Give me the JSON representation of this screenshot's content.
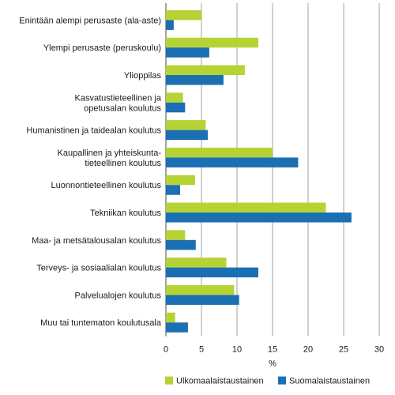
{
  "chart_data": {
    "type": "bar",
    "orientation": "horizontal",
    "categories": [
      [
        "Enintään alempi perusaste (ala-aste)"
      ],
      [
        "Ylempi perusaste (peruskoulu)"
      ],
      [
        "Ylioppilas"
      ],
      [
        "Kasvatustieteellinen ja",
        "opetusalan koulutus"
      ],
      [
        "Humanistinen ja taidealan koulutus"
      ],
      [
        "Kaupallinen ja yhteiskunta-",
        "tieteellinen koulutus"
      ],
      [
        "Luonnontieteellinen koulutus"
      ],
      [
        "Tekniikan koulutus"
      ],
      [
        "Maa- ja metsätalousalan koulutus"
      ],
      [
        "Terveys- ja sosiaalialan koulutus"
      ],
      [
        "Palvelualojen koulutus"
      ],
      [
        "Muu tai tuntematon koulutusala"
      ]
    ],
    "series": [
      {
        "name": "Ulkomaalaistaustainen",
        "color": "#b5d334",
        "values": [
          5.0,
          13.0,
          11.1,
          2.4,
          5.6,
          15.0,
          4.1,
          22.5,
          2.7,
          8.5,
          9.6,
          1.3
        ]
      },
      {
        "name": "Suomalaistaustainen",
        "color": "#1b6fb3",
        "values": [
          1.1,
          6.1,
          8.1,
          2.7,
          5.9,
          18.6,
          2.0,
          26.1,
          4.2,
          13.0,
          10.3,
          3.1
        ]
      }
    ],
    "xlabel": "%",
    "xlim": [
      0,
      30
    ],
    "xticks": [
      0,
      5,
      10,
      15,
      20,
      25,
      30
    ],
    "grid": "vertical",
    "legend_position": "bottom"
  }
}
